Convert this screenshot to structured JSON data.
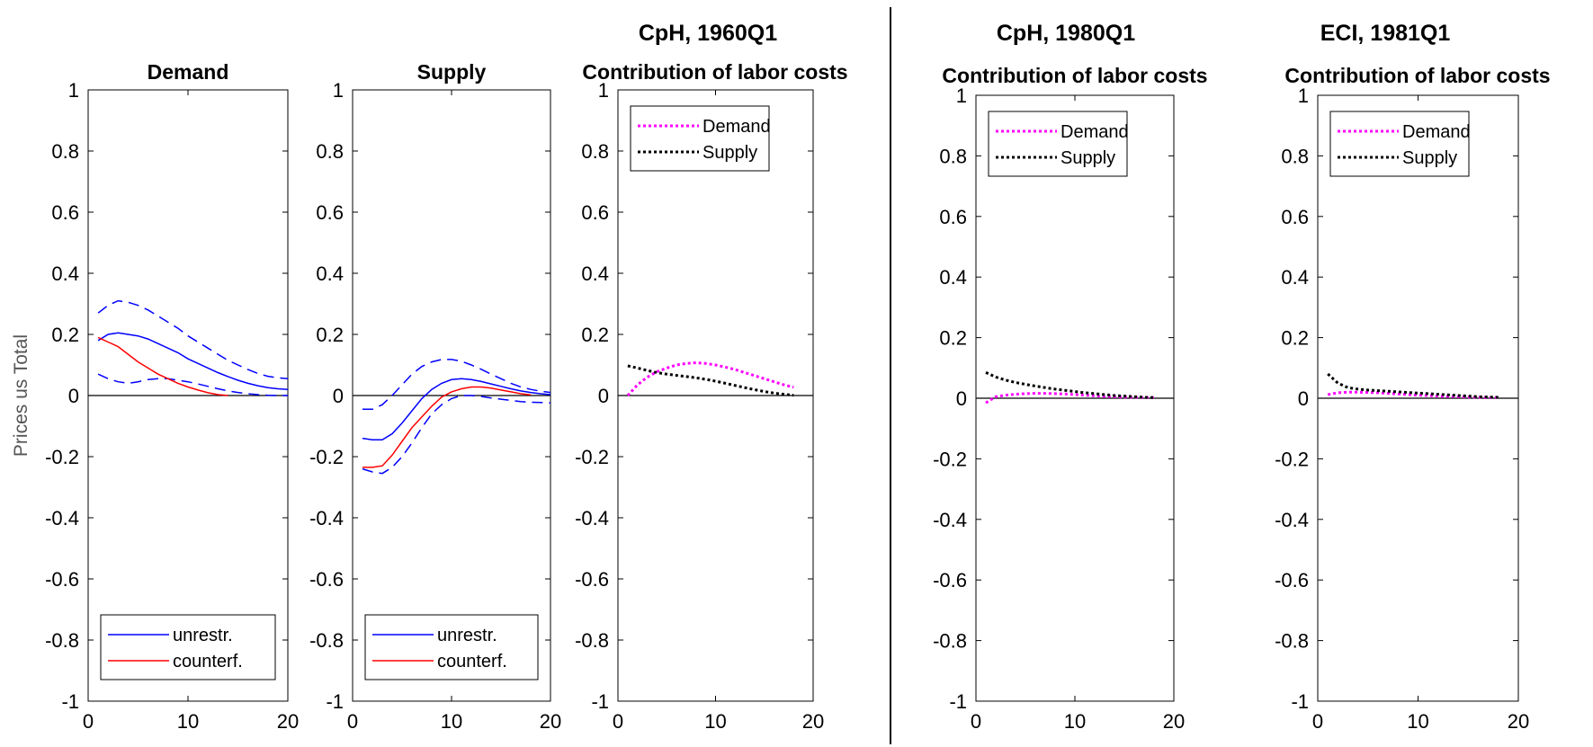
{
  "chart_data": {
    "type": "line",
    "ylabel": "Prices us Total",
    "groups": [
      {
        "id": "g1",
        "title": "CpH, 1960Q1"
      },
      {
        "id": "g2",
        "title": "CpH, 1980Q1"
      },
      {
        "id": "g3",
        "title": "ECI, 1981Q1"
      }
    ],
    "panels": [
      {
        "id": "demand",
        "title": "Demand",
        "group": "g1",
        "xlim": [
          0,
          20
        ],
        "ylim": [
          -1,
          1
        ],
        "xticks": [
          0,
          10,
          20
        ],
        "yticks": [
          -1,
          -0.8,
          -0.6,
          -0.4,
          -0.2,
          0,
          0.2,
          0.4,
          0.6,
          0.8,
          1
        ],
        "legend": "bottom",
        "series": [
          {
            "name": "unrestr.",
            "color": "#0000ff",
            "style": "solid",
            "x": [
              1,
              2,
              3,
              4,
              5,
              6,
              7,
              8,
              9,
              10,
              11,
              12,
              13,
              14,
              15,
              16,
              17,
              18,
              19,
              20
            ],
            "y": [
              0.18,
              0.2,
              0.205,
              0.2,
              0.195,
              0.185,
              0.17,
              0.155,
              0.14,
              0.12,
              0.105,
              0.09,
              0.075,
              0.062,
              0.05,
              0.04,
              0.032,
              0.026,
              0.022,
              0.02
            ]
          },
          {
            "name": "",
            "color": "#0000ff",
            "style": "dashed",
            "x": [
              1,
              2,
              3,
              4,
              5,
              6,
              7,
              8,
              9,
              10,
              11,
              12,
              13,
              14,
              15,
              16,
              17,
              18,
              19,
              20
            ],
            "y": [
              0.27,
              0.295,
              0.31,
              0.305,
              0.295,
              0.28,
              0.26,
              0.24,
              0.22,
              0.195,
              0.175,
              0.155,
              0.135,
              0.115,
              0.1,
              0.085,
              0.072,
              0.063,
              0.058,
              0.055
            ]
          },
          {
            "name": "",
            "color": "#0000ff",
            "style": "dashed",
            "x": [
              1,
              2,
              3,
              4,
              5,
              6,
              7,
              8,
              9,
              10,
              11,
              12,
              13,
              14,
              15,
              16,
              17,
              18,
              19,
              20
            ],
            "y": [
              0.07,
              0.055,
              0.045,
              0.04,
              0.045,
              0.052,
              0.055,
              0.055,
              0.05,
              0.045,
              0.038,
              0.03,
              0.022,
              0.015,
              0.01,
              0.006,
              0.003,
              0.001,
              0,
              0
            ]
          },
          {
            "name": "counterf.",
            "color": "#ff0000",
            "style": "solid",
            "x": [
              1,
              2,
              3,
              4,
              5,
              6,
              7,
              8,
              9,
              10,
              11,
              12,
              13,
              14
            ],
            "y": [
              0.19,
              0.175,
              0.16,
              0.135,
              0.11,
              0.09,
              0.07,
              0.055,
              0.04,
              0.028,
              0.018,
              0.009,
              0.003,
              0
            ]
          }
        ]
      },
      {
        "id": "supply",
        "title": "Supply",
        "group": "g1",
        "xlim": [
          0,
          20
        ],
        "ylim": [
          -1,
          1
        ],
        "xticks": [
          0,
          10,
          20
        ],
        "yticks": [
          -1,
          -0.8,
          -0.6,
          -0.4,
          -0.2,
          0,
          0.2,
          0.4,
          0.6,
          0.8,
          1
        ],
        "legend": "bottom",
        "series": [
          {
            "name": "unrestr.",
            "color": "#0000ff",
            "style": "solid",
            "x": [
              1,
              2,
              3,
              4,
              5,
              6,
              7,
              8,
              9,
              10,
              11,
              12,
              13,
              14,
              15,
              16,
              17,
              18,
              19,
              20
            ],
            "y": [
              -0.14,
              -0.145,
              -0.145,
              -0.125,
              -0.09,
              -0.05,
              -0.01,
              0.02,
              0.04,
              0.052,
              0.055,
              0.052,
              0.046,
              0.038,
              0.03,
              0.022,
              0.015,
              0.01,
              0.006,
              0.003
            ]
          },
          {
            "name": "",
            "color": "#0000ff",
            "style": "dashed",
            "x": [
              1,
              2,
              3,
              4,
              5,
              6,
              7,
              8,
              9,
              10,
              11,
              12,
              13,
              14,
              15,
              16,
              17,
              18,
              19,
              20
            ],
            "y": [
              -0.045,
              -0.045,
              -0.03,
              0,
              0.035,
              0.07,
              0.095,
              0.11,
              0.118,
              0.118,
              0.112,
              0.1,
              0.086,
              0.07,
              0.055,
              0.04,
              0.028,
              0.02,
              0.014,
              0.01
            ]
          },
          {
            "name": "",
            "color": "#0000ff",
            "style": "dashed",
            "x": [
              1,
              2,
              3,
              4,
              5,
              6,
              7,
              8,
              9,
              10,
              11,
              12,
              13,
              14,
              15,
              16,
              17,
              18,
              19,
              20
            ],
            "y": [
              -0.24,
              -0.25,
              -0.255,
              -0.235,
              -0.2,
              -0.155,
              -0.105,
              -0.06,
              -0.03,
              -0.01,
              0,
              0,
              -0.003,
              -0.008,
              -0.012,
              -0.016,
              -0.02,
              -0.022,
              -0.023,
              -0.024
            ]
          },
          {
            "name": "counterf.",
            "color": "#ff0000",
            "style": "solid",
            "x": [
              1,
              2,
              3,
              4,
              5,
              6,
              7,
              8,
              9,
              10,
              11,
              12,
              13,
              14,
              15,
              16,
              17,
              18
            ],
            "y": [
              -0.235,
              -0.235,
              -0.23,
              -0.195,
              -0.15,
              -0.105,
              -0.07,
              -0.035,
              -0.005,
              0.012,
              0.022,
              0.028,
              0.028,
              0.024,
              0.018,
              0.012,
              0.006,
              0.002
            ]
          }
        ]
      },
      {
        "id": "labor-1960",
        "title": "Contribution of labor costs",
        "group": "g1",
        "xlim": [
          0,
          20
        ],
        "ylim": [
          -1,
          1
        ],
        "xticks": [
          0,
          10,
          20
        ],
        "yticks": [
          -1,
          -0.8,
          -0.6,
          -0.4,
          -0.2,
          0,
          0.2,
          0.4,
          0.6,
          0.8,
          1
        ],
        "legend": "top-left",
        "series": [
          {
            "name": "Demand",
            "color": "#ff00ff",
            "style": "dotted",
            "x": [
              1,
              2,
              3,
              4,
              5,
              6,
              7,
              8,
              9,
              10,
              11,
              12,
              13,
              14,
              15,
              16,
              17,
              18
            ],
            "y": [
              0,
              0.035,
              0.06,
              0.078,
              0.09,
              0.1,
              0.105,
              0.107,
              0.105,
              0.1,
              0.093,
              0.085,
              0.075,
              0.065,
              0.055,
              0.045,
              0.035,
              0.027
            ]
          },
          {
            "name": "Supply",
            "color": "#000000",
            "style": "dotted",
            "x": [
              1,
              2,
              3,
              4,
              5,
              6,
              7,
              8,
              9,
              10,
              11,
              12,
              13,
              14,
              15,
              16,
              17,
              18
            ],
            "y": [
              0.097,
              0.09,
              0.082,
              0.075,
              0.07,
              0.066,
              0.062,
              0.058,
              0.053,
              0.047,
              0.04,
              0.033,
              0.026,
              0.019,
              0.013,
              0.008,
              0.004,
              0.001
            ]
          }
        ]
      },
      {
        "id": "labor-1980",
        "title": "Contribution of labor costs",
        "group": "g2",
        "xlim": [
          0,
          20
        ],
        "ylim": [
          -1,
          1
        ],
        "xticks": [
          0,
          10,
          20
        ],
        "yticks": [
          -1,
          -0.8,
          -0.6,
          -0.4,
          -0.2,
          0,
          0.2,
          0.4,
          0.6,
          0.8,
          1
        ],
        "legend": "top-left",
        "series": [
          {
            "name": "Demand",
            "color": "#ff00ff",
            "style": "dotted",
            "x": [
              1,
              2,
              3,
              4,
              5,
              6,
              7,
              8,
              9,
              10,
              11,
              12,
              13,
              14,
              15,
              16,
              17,
              18
            ],
            "y": [
              -0.015,
              0.005,
              0.01,
              0.013,
              0.015,
              0.016,
              0.016,
              0.015,
              0.014,
              0.012,
              0.01,
              0.008,
              0.006,
              0.005,
              0.004,
              0.003,
              0.002,
              0.002
            ]
          },
          {
            "name": "Supply",
            "color": "#000000",
            "style": "dotted",
            "x": [
              1,
              2,
              3,
              4,
              5,
              6,
              7,
              8,
              9,
              10,
              11,
              12,
              13,
              14,
              15,
              16,
              17,
              18
            ],
            "y": [
              0.085,
              0.07,
              0.06,
              0.052,
              0.046,
              0.04,
              0.035,
              0.03,
              0.026,
              0.022,
              0.018,
              0.015,
              0.012,
              0.009,
              0.007,
              0.005,
              0.003,
              0.002
            ]
          }
        ]
      },
      {
        "id": "labor-1981",
        "title": "Contribution of labor costs",
        "group": "g3",
        "xlim": [
          0,
          20
        ],
        "ylim": [
          -1,
          1
        ],
        "xticks": [
          0,
          10,
          20
        ],
        "yticks": [
          -1,
          -0.8,
          -0.6,
          -0.4,
          -0.2,
          0,
          0.2,
          0.4,
          0.6,
          0.8,
          1
        ],
        "legend": "top-left",
        "series": [
          {
            "name": "Demand",
            "color": "#ff00ff",
            "style": "dotted",
            "x": [
              1,
              2,
              3,
              4,
              5,
              6,
              7,
              8,
              9,
              10,
              11,
              12,
              13,
              14,
              15,
              16,
              17,
              18
            ],
            "y": [
              0.012,
              0.018,
              0.02,
              0.02,
              0.019,
              0.018,
              0.016,
              0.014,
              0.012,
              0.01,
              0.009,
              0.007,
              0.006,
              0.005,
              0.004,
              0.003,
              0.002,
              0.002
            ]
          },
          {
            "name": "Supply",
            "color": "#000000",
            "style": "dotted",
            "x": [
              1,
              2,
              3,
              4,
              5,
              6,
              7,
              8,
              9,
              10,
              11,
              12,
              13,
              14,
              15,
              16,
              17,
              18
            ],
            "y": [
              0.08,
              0.05,
              0.035,
              0.03,
              0.027,
              0.025,
              0.023,
              0.021,
              0.019,
              0.017,
              0.015,
              0.013,
              0.011,
              0.009,
              0.007,
              0.005,
              0.004,
              0.003
            ]
          }
        ]
      }
    ]
  }
}
